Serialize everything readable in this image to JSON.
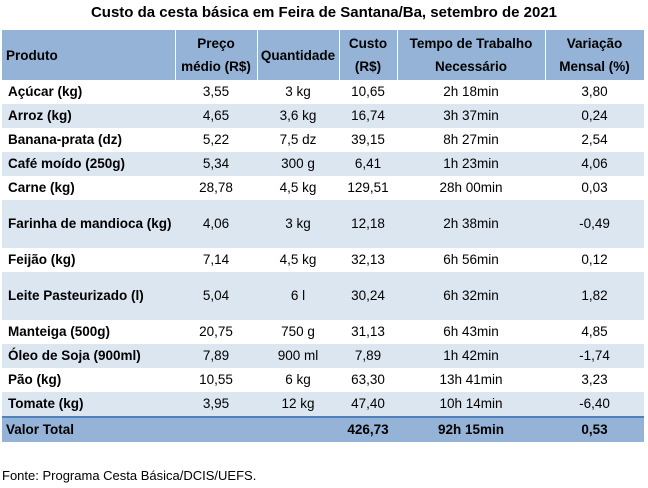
{
  "title": "Custo da cesta básica em Feira de Santana/Ba, setembro de 2021",
  "headers": {
    "produto": "Produto",
    "preco": "Preço médio (R$)",
    "quantidade": "Quantidade",
    "custo": "Custo (R$)",
    "tempo": "Tempo de Trabalho Necessário",
    "variacao": "Variação Mensal (%)"
  },
  "rows": [
    {
      "produto": "Açúcar (kg)",
      "preco": "3,55",
      "quantidade": "3 kg",
      "custo": "10,65",
      "tempo": "2h 18min",
      "variacao": "3,80"
    },
    {
      "produto": "Arroz (kg)",
      "preco": "4,65",
      "quantidade": "3,6 kg",
      "custo": "16,74",
      "tempo": "3h 37min",
      "variacao": "0,24"
    },
    {
      "produto": "Banana-prata (dz)",
      "preco": "5,22",
      "quantidade": "7,5 dz",
      "custo": "39,15",
      "tempo": "8h 27min",
      "variacao": "2,54"
    },
    {
      "produto": "Café moído (250g)",
      "preco": "5,34",
      "quantidade": "300 g",
      "custo": "6,41",
      "tempo": "1h 23min",
      "variacao": "4,06"
    },
    {
      "produto": "Carne (kg)",
      "preco": "28,78",
      "quantidade": "4,5 kg",
      "custo": "129,51",
      "tempo": "28h 00min",
      "variacao": "0,03"
    },
    {
      "produto": "Farinha de mandioca (kg)",
      "preco": "4,06",
      "quantidade": "3 kg",
      "custo": "12,18",
      "tempo": "2h 38min",
      "variacao": "-0,49"
    },
    {
      "produto": "Feijão (kg)",
      "preco": "7,14",
      "quantidade": "4,5 kg",
      "custo": "32,13",
      "tempo": "6h 56min",
      "variacao": "0,12"
    },
    {
      "produto": "Leite Pasteurizado (l)",
      "preco": "5,04",
      "quantidade": "6 l",
      "custo": "30,24",
      "tempo": "6h 32min",
      "variacao": "1,82"
    },
    {
      "produto": "Manteiga (500g)",
      "preco": "20,75",
      "quantidade": "750 g",
      "custo": "31,13",
      "tempo": "6h 43min",
      "variacao": "4,85"
    },
    {
      "produto": "Óleo de Soja (900ml)",
      "preco": "7,89",
      "quantidade": "900 ml",
      "custo": "7,89",
      "tempo": "1h 42min",
      "variacao": "-1,74"
    },
    {
      "produto": "Pão (kg)",
      "preco": "10,55",
      "quantidade": "6 kg",
      "custo": "63,30",
      "tempo": "13h 41min",
      "variacao": "3,23"
    },
    {
      "produto": "Tomate (kg)",
      "preco": "3,95",
      "quantidade": "12 kg",
      "custo": "47,40",
      "tempo": "10h 14min",
      "variacao": "-6,40"
    }
  ],
  "total": {
    "label": "Valor Total",
    "custo": "426,73",
    "tempo": "92h 15min",
    "variacao": "0,53"
  },
  "source": "Fonte: Programa Cesta Básica/DCIS/UEFS.",
  "colors": {
    "header_bg": "#95b3d7",
    "band_bg": "#dce6f1"
  }
}
